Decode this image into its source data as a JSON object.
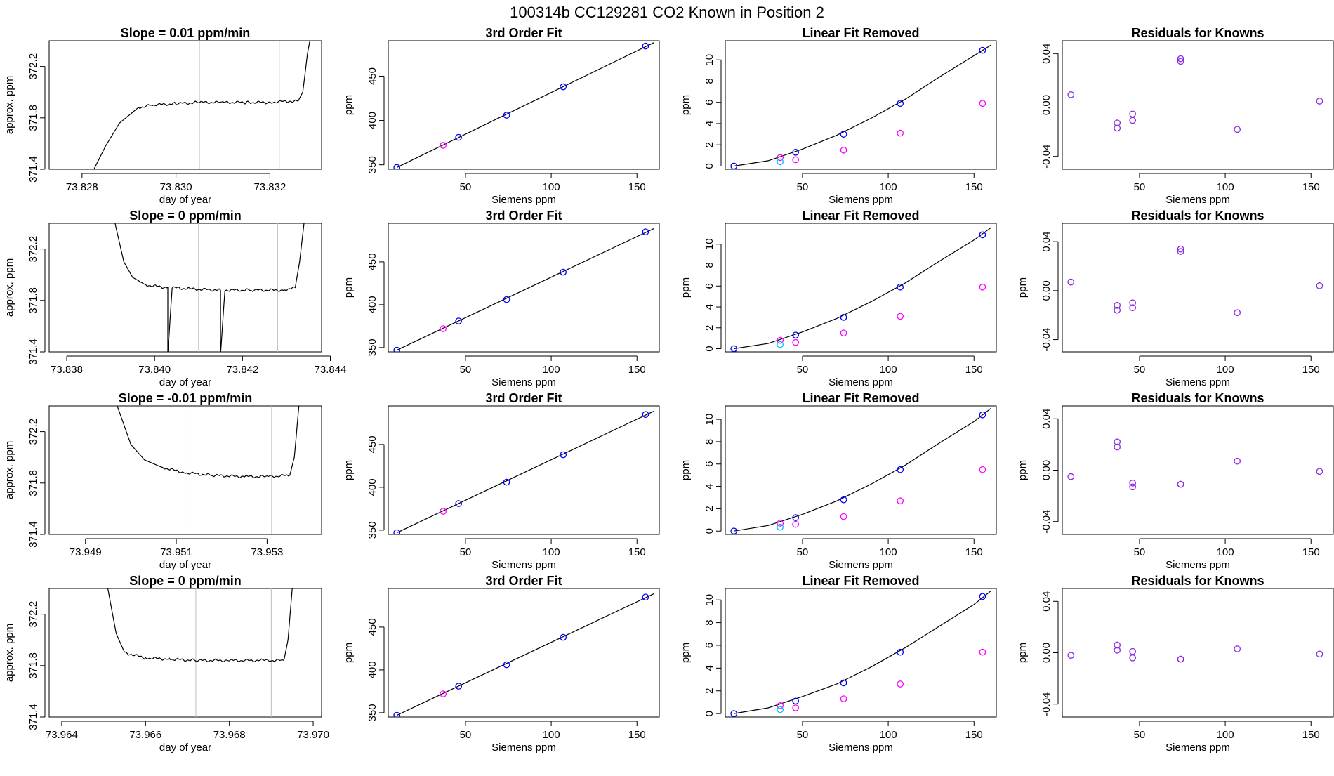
{
  "figure": {
    "title": "100314b      CC129281    CO2 Known in Position  2"
  },
  "colors": {
    "line": "#000000",
    "vline": "#bebebe",
    "blue": "#0000ff",
    "magenta": "#ff00ff",
    "cyan": "#00bfff",
    "purple": "#8a2be2",
    "red": "#ff0000"
  },
  "known_x": [
    10,
    37,
    46,
    74,
    107,
    155
  ],
  "chart_data": [
    {
      "type": "line",
      "title": "Slope =  0.01  ppm/min",
      "xlabel": "day of year",
      "ylabel": "approx. ppm",
      "xlim": [
        73.8273,
        73.8331
      ],
      "ylim": [
        371.4,
        372.4
      ],
      "xticks": [
        73.828,
        73.83,
        73.832
      ],
      "yticks": [
        371.4,
        371.8,
        372.2
      ],
      "vlines": [
        73.8305,
        73.8322
      ],
      "trace": [
        [
          73.8282,
          371.36
        ],
        [
          73.8285,
          371.58
        ],
        [
          73.8288,
          371.76
        ],
        [
          73.8292,
          371.88
        ],
        [
          73.8295,
          371.9
        ],
        [
          73.83,
          371.91
        ],
        [
          73.8305,
          371.92
        ],
        [
          73.831,
          371.92
        ],
        [
          73.8315,
          371.92
        ],
        [
          73.832,
          371.92
        ],
        [
          73.8324,
          371.93
        ],
        [
          73.8326,
          371.93
        ],
        [
          73.8327,
          372.0
        ],
        [
          73.8328,
          372.3
        ],
        [
          73.8329,
          372.5
        ]
      ]
    },
    {
      "type": "scatter",
      "title": "3rd Order Fit",
      "xlabel": "Siemens ppm",
      "ylabel": "ppm",
      "xlim": [
        5,
        163
      ],
      "ylim": [
        345,
        490
      ],
      "xticks": [
        50,
        100,
        150
      ],
      "yticks": [
        350,
        400,
        450
      ],
      "fit": [
        [
          10,
          347
        ],
        [
          160,
          488
        ]
      ],
      "series": [
        {
          "color": "blue",
          "x": [
            10,
            46,
            74,
            107,
            155
          ],
          "y": [
            347,
            381,
            406,
            438,
            484
          ]
        },
        {
          "color": "magenta",
          "x": [
            37
          ],
          "y": [
            372
          ]
        }
      ]
    },
    {
      "type": "scatter",
      "title": "Linear Fit Removed",
      "xlabel": "Siemens ppm",
      "ylabel": "ppm",
      "xlim": [
        5,
        163
      ],
      "ylim": [
        -0.3,
        11.8
      ],
      "xticks": [
        50,
        100,
        150
      ],
      "yticks": [
        0,
        2,
        4,
        6,
        8,
        10
      ],
      "curve": [
        [
          10,
          0
        ],
        [
          30,
          0.5
        ],
        [
          50,
          1.6
        ],
        [
          70,
          2.9
        ],
        [
          90,
          4.5
        ],
        [
          110,
          6.3
        ],
        [
          130,
          8.4
        ],
        [
          150,
          10.4
        ],
        [
          160,
          11.4
        ]
      ],
      "series": [
        {
          "color": "blue",
          "x": [
            10,
            46,
            74,
            107,
            155
          ],
          "y": [
            0,
            1.3,
            3.0,
            5.9,
            10.9
          ]
        },
        {
          "color": "magenta",
          "x": [
            37,
            46,
            74,
            107,
            155
          ],
          "y": [
            0.8,
            0.6,
            1.5,
            3.1,
            5.9
          ]
        },
        {
          "color": "cyan",
          "x": [
            37
          ],
          "y": [
            0.4
          ]
        }
      ]
    },
    {
      "type": "scatter",
      "title": "Residuals for Knowns",
      "xlabel": "Siemens ppm",
      "ylabel": "",
      "xlim": [
        5,
        163
      ],
      "ylim": [
        -0.05,
        0.05
      ],
      "xticks": [
        50,
        100,
        150
      ],
      "yticks": [
        -0.04,
        0.0,
        0.04
      ],
      "series": [
        {
          "color": "purple",
          "x": [
            10,
            37,
            37,
            46,
            46,
            74,
            74,
            107,
            155
          ],
          "y": [
            0.008,
            -0.014,
            -0.018,
            -0.012,
            -0.007,
            0.036,
            0.034,
            -0.019,
            0.003
          ]
        }
      ]
    },
    {
      "type": "line",
      "title": "Slope =  0  ppm/min",
      "xlabel": "day of year",
      "ylabel": "approx. ppm",
      "xlim": [
        73.8376,
        73.8438
      ],
      "ylim": [
        371.4,
        372.4
      ],
      "xticks": [
        73.838,
        73.84,
        73.842,
        73.844
      ],
      "yticks": [
        371.4,
        371.8,
        372.2
      ],
      "vlines": [
        73.841,
        73.8428
      ],
      "trace": [
        [
          73.8391,
          372.4
        ],
        [
          73.8393,
          372.1
        ],
        [
          73.8395,
          371.98
        ],
        [
          73.8398,
          371.92
        ],
        [
          73.8403,
          371.9
        ],
        [
          73.8403,
          371.38
        ],
        [
          73.8404,
          371.9
        ],
        [
          73.8408,
          371.89
        ],
        [
          73.8415,
          371.88
        ],
        [
          73.8415,
          371.38
        ],
        [
          73.8416,
          371.88
        ],
        [
          73.8422,
          371.88
        ],
        [
          73.843,
          371.88
        ],
        [
          73.8432,
          371.9
        ],
        [
          73.8433,
          372.1
        ],
        [
          73.8434,
          372.4
        ]
      ]
    },
    {
      "type": "scatter",
      "title": "3rd Order Fit",
      "xlabel": "Siemens ppm",
      "ylabel": "ppm",
      "xlim": [
        5,
        163
      ],
      "ylim": [
        345,
        495
      ],
      "xticks": [
        50,
        100,
        150
      ],
      "yticks": [
        350,
        400,
        450
      ],
      "fit": [
        [
          10,
          347
        ],
        [
          160,
          489
        ]
      ],
      "series": [
        {
          "color": "blue",
          "x": [
            10,
            46,
            74,
            107,
            155
          ],
          "y": [
            347,
            381,
            406,
            438,
            485
          ]
        },
        {
          "color": "magenta",
          "x": [
            37
          ],
          "y": [
            372
          ]
        }
      ]
    },
    {
      "type": "scatter",
      "title": "Linear Fit Removed",
      "xlabel": "Siemens ppm",
      "ylabel": "ppm",
      "xlim": [
        5,
        163
      ],
      "ylim": [
        -0.3,
        12.0
      ],
      "xticks": [
        50,
        100,
        150
      ],
      "yticks": [
        0,
        2,
        4,
        6,
        8,
        10
      ],
      "curve": [
        [
          10,
          0
        ],
        [
          30,
          0.5
        ],
        [
          50,
          1.6
        ],
        [
          70,
          2.9
        ],
        [
          90,
          4.5
        ],
        [
          110,
          6.3
        ],
        [
          130,
          8.4
        ],
        [
          150,
          10.4
        ],
        [
          160,
          11.6
        ]
      ],
      "series": [
        {
          "color": "blue",
          "x": [
            10,
            46,
            74,
            107,
            155
          ],
          "y": [
            0,
            1.3,
            3.0,
            5.9,
            10.9
          ]
        },
        {
          "color": "magenta",
          "x": [
            37,
            46,
            74,
            107,
            155
          ],
          "y": [
            0.8,
            0.6,
            1.5,
            3.1,
            5.9
          ]
        },
        {
          "color": "cyan",
          "x": [
            37
          ],
          "y": [
            0.4
          ]
        }
      ]
    },
    {
      "type": "scatter",
      "title": "Residuals for Knowns",
      "xlabel": "Siemens ppm",
      "ylabel": "ppm",
      "xlim": [
        5,
        163
      ],
      "ylim": [
        -0.05,
        0.055
      ],
      "xticks": [
        50,
        100,
        150
      ],
      "yticks": [
        -0.04,
        0.0,
        0.04
      ],
      "series": [
        {
          "color": "purple",
          "x": [
            10,
            37,
            37,
            46,
            46,
            74,
            74,
            107,
            155
          ],
          "y": [
            0.007,
            -0.012,
            -0.016,
            -0.014,
            -0.01,
            0.034,
            0.032,
            -0.018,
            0.004
          ]
        }
      ]
    },
    {
      "type": "line",
      "title": "Slope =  -0.01  ppm/min",
      "xlabel": "day of year",
      "ylabel": "approx. ppm",
      "xlim": [
        73.9482,
        73.9542
      ],
      "ylim": [
        371.4,
        372.4
      ],
      "xticks": [
        73.949,
        73.951,
        73.953
      ],
      "yticks": [
        371.4,
        371.8,
        372.2
      ],
      "vlines": [
        73.9513,
        73.9531
      ],
      "trace": [
        [
          73.9497,
          372.4
        ],
        [
          73.95,
          372.1
        ],
        [
          73.9503,
          371.98
        ],
        [
          73.9507,
          371.92
        ],
        [
          73.9512,
          371.88
        ],
        [
          73.9518,
          371.86
        ],
        [
          73.9525,
          371.85
        ],
        [
          73.953,
          371.85
        ],
        [
          73.9535,
          371.86
        ],
        [
          73.9536,
          372.0
        ],
        [
          73.9537,
          372.4
        ]
      ]
    },
    {
      "type": "scatter",
      "title": "3rd Order Fit",
      "xlabel": "Siemens ppm",
      "ylabel": "ppm",
      "xlim": [
        5,
        163
      ],
      "ylim": [
        345,
        495
      ],
      "xticks": [
        50,
        100,
        150
      ],
      "yticks": [
        350,
        400,
        450
      ],
      "fit": [
        [
          10,
          347
        ],
        [
          160,
          489
        ]
      ],
      "series": [
        {
          "color": "blue",
          "x": [
            10,
            46,
            74,
            107,
            155
          ],
          "y": [
            347,
            381,
            406,
            438,
            485
          ]
        },
        {
          "color": "magenta",
          "x": [
            37
          ],
          "y": [
            372
          ]
        }
      ]
    },
    {
      "type": "scatter",
      "title": "Linear Fit Removed",
      "xlabel": "Siemens ppm",
      "ylabel": "ppm",
      "xlim": [
        5,
        163
      ],
      "ylim": [
        -0.3,
        11.2
      ],
      "xticks": [
        50,
        100,
        150
      ],
      "yticks": [
        0,
        2,
        4,
        6,
        8,
        10
      ],
      "curve": [
        [
          10,
          0
        ],
        [
          30,
          0.5
        ],
        [
          50,
          1.5
        ],
        [
          70,
          2.7
        ],
        [
          90,
          4.2
        ],
        [
          110,
          5.9
        ],
        [
          130,
          7.9
        ],
        [
          150,
          9.8
        ],
        [
          160,
          11.0
        ]
      ],
      "series": [
        {
          "color": "blue",
          "x": [
            10,
            46,
            74,
            107,
            155
          ],
          "y": [
            0,
            1.2,
            2.8,
            5.5,
            10.4
          ]
        },
        {
          "color": "magenta",
          "x": [
            37,
            46,
            74,
            107,
            155
          ],
          "y": [
            0.7,
            0.6,
            1.3,
            2.7,
            5.5
          ]
        },
        {
          "color": "cyan",
          "x": [
            37
          ],
          "y": [
            0.35
          ]
        }
      ]
    },
    {
      "type": "scatter",
      "title": "Residuals for Knowns",
      "xlabel": "Siemens ppm",
      "ylabel": "ppm",
      "xlim": [
        5,
        163
      ],
      "ylim": [
        -0.05,
        0.05
      ],
      "xticks": [
        50,
        100,
        150
      ],
      "yticks": [
        -0.04,
        0.0,
        0.04
      ],
      "series": [
        {
          "color": "purple",
          "x": [
            10,
            37,
            37,
            46,
            46,
            74,
            74,
            107,
            155
          ],
          "y": [
            -0.005,
            0.022,
            0.018,
            -0.013,
            -0.01,
            -0.011,
            -0.011,
            0.007,
            -0.001
          ]
        }
      ]
    },
    {
      "type": "line",
      "title": "Slope =  0  ppm/min",
      "xlabel": "day of year",
      "ylabel": "approx. ppm",
      "xlim": [
        73.9637,
        73.9702
      ],
      "ylim": [
        371.4,
        372.4
      ],
      "xticks": [
        73.964,
        73.966,
        73.968,
        73.97
      ],
      "yticks": [
        371.4,
        371.8,
        372.2
      ],
      "vlines": [
        73.9672,
        73.969
      ],
      "trace": [
        [
          73.9651,
          372.4
        ],
        [
          73.9653,
          372.05
        ],
        [
          73.9655,
          371.9
        ],
        [
          73.966,
          371.86
        ],
        [
          73.9666,
          371.85
        ],
        [
          73.9672,
          371.84
        ],
        [
          73.968,
          371.84
        ],
        [
          73.9688,
          371.84
        ],
        [
          73.9693,
          371.84
        ],
        [
          73.9694,
          372.0
        ],
        [
          73.9695,
          372.4
        ]
      ]
    },
    {
      "type": "scatter",
      "title": "3rd Order Fit",
      "xlabel": "Siemens ppm",
      "ylabel": "ppm",
      "xlim": [
        5,
        163
      ],
      "ylim": [
        345,
        495
      ],
      "xticks": [
        50,
        100,
        150
      ],
      "yticks": [
        350,
        400,
        450
      ],
      "fit": [
        [
          10,
          347
        ],
        [
          160,
          489
        ]
      ],
      "series": [
        {
          "color": "blue",
          "x": [
            10,
            46,
            74,
            107,
            155
          ],
          "y": [
            347,
            381,
            406,
            438,
            485
          ]
        },
        {
          "color": "magenta",
          "x": [
            37
          ],
          "y": [
            372
          ]
        }
      ]
    },
    {
      "type": "scatter",
      "title": "Linear Fit Removed",
      "xlabel": "Siemens ppm",
      "ylabel": "ppm",
      "xlim": [
        5,
        163
      ],
      "ylim": [
        -0.3,
        11.0
      ],
      "xticks": [
        50,
        100,
        150
      ],
      "yticks": [
        0,
        2,
        4,
        6,
        8,
        10
      ],
      "curve": [
        [
          10,
          0
        ],
        [
          30,
          0.5
        ],
        [
          50,
          1.5
        ],
        [
          70,
          2.6
        ],
        [
          90,
          4.1
        ],
        [
          110,
          5.8
        ],
        [
          130,
          7.7
        ],
        [
          150,
          9.6
        ],
        [
          160,
          10.8
        ]
      ],
      "series": [
        {
          "color": "blue",
          "x": [
            10,
            46,
            74,
            107,
            155
          ],
          "y": [
            0,
            1.1,
            2.7,
            5.4,
            10.3
          ]
        },
        {
          "color": "magenta",
          "x": [
            37,
            46,
            74,
            107,
            155
          ],
          "y": [
            0.7,
            0.5,
            1.3,
            2.6,
            5.4
          ]
        },
        {
          "color": "cyan",
          "x": [
            37
          ],
          "y": [
            0.35
          ]
        }
      ]
    },
    {
      "type": "scatter",
      "title": "Residuals for Knowns",
      "xlabel": "Siemens ppm",
      "ylabel": "ppm",
      "xlim": [
        5,
        163
      ],
      "ylim": [
        -0.05,
        0.05
      ],
      "xticks": [
        50,
        100,
        150
      ],
      "yticks": [
        -0.04,
        0.0,
        0.04
      ],
      "series": [
        {
          "color": "purple",
          "x": [
            10,
            37,
            37,
            46,
            46,
            74,
            74,
            107,
            155
          ],
          "y": [
            -0.002,
            0.006,
            0.002,
            -0.004,
            0.001,
            -0.005,
            -0.005,
            0.003,
            -0.001
          ]
        }
      ]
    }
  ]
}
